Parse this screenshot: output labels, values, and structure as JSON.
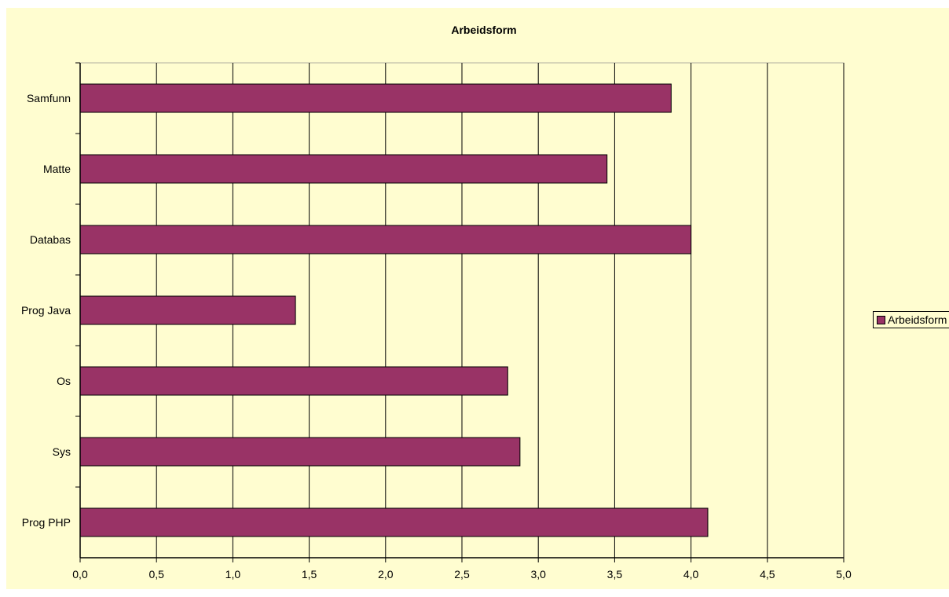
{
  "chart_data": {
    "type": "bar",
    "orientation": "horizontal",
    "title": "Arbeidsform",
    "categories": [
      "Samfunn",
      "Matte",
      "Databas",
      "Prog Java",
      "Os",
      "Sys",
      "Prog PHP"
    ],
    "series": [
      {
        "name": "Arbeidsform",
        "values": [
          3.87,
          3.45,
          4.0,
          1.41,
          2.8,
          2.88,
          4.11
        ]
      }
    ],
    "xlim": [
      0,
      5
    ],
    "x_ticks": [
      "0,0",
      "0,5",
      "1,0",
      "1,5",
      "2,0",
      "2,5",
      "3,0",
      "3,5",
      "4,0",
      "4,5",
      "5,0"
    ],
    "grid": true,
    "legend_position": "right",
    "colors": {
      "bar": "#993366",
      "plot_background": "#fffdd0",
      "gridline": "#000000"
    }
  }
}
